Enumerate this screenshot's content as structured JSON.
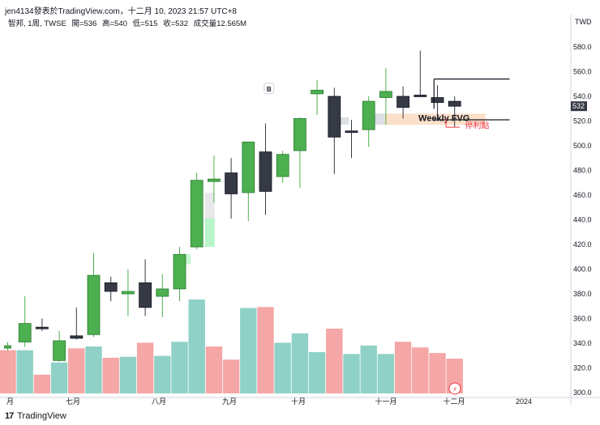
{
  "header": {
    "text": "jen4134發表於TradingView.com，十二月 10, 2023 21:57 UTC+8"
  },
  "symbol": {
    "name": "智邦, 1周, TWSE",
    "open": "開=536",
    "high": "高=540",
    "low": "低=515",
    "close": "收=532",
    "volume": "成交量12.565M"
  },
  "footer": {
    "logo": "17",
    "brand": "TradingView"
  },
  "chart_data": {
    "type": "candlestick",
    "currency": "TWD",
    "ylim": [
      300,
      580
    ],
    "y_ticks": [
      580,
      560,
      540,
      520,
      500,
      480,
      460,
      440,
      420,
      400,
      380,
      360,
      340,
      320,
      300
    ],
    "last_price": 532,
    "x_labels": [
      "月",
      "七月",
      "八月",
      "九月",
      "十月",
      "十一月",
      "十二月",
      "2024"
    ],
    "colors": {
      "up": "#4caf50",
      "down": "#363a45",
      "vol_up": "#8fd1c6",
      "vol_down": "#f5a6a6"
    },
    "candles": [
      {
        "o": 336,
        "h": 341,
        "l": 334,
        "c": 338,
        "vol": 0.46
      },
      {
        "o": 341,
        "h": 378,
        "l": 337,
        "c": 356,
        "vol": 0.46
      },
      {
        "o": 353,
        "h": 360,
        "l": 350,
        "c": 352,
        "vol": 0.2
      },
      {
        "o": 326,
        "h": 350,
        "l": 325,
        "c": 342,
        "vol": 0.33
      },
      {
        "o": 346,
        "h": 369,
        "l": 343,
        "c": 344,
        "vol": 0.48
      },
      {
        "o": 347,
        "h": 413,
        "l": 345,
        "c": 395,
        "vol": 0.5
      },
      {
        "o": 389,
        "h": 394,
        "l": 374,
        "c": 382,
        "vol": 0.38
      },
      {
        "o": 380,
        "h": 400,
        "l": 362,
        "c": 382,
        "vol": 0.39
      },
      {
        "o": 389,
        "h": 408,
        "l": 362,
        "c": 369,
        "vol": 0.54
      },
      {
        "o": 378,
        "h": 396,
        "l": 361,
        "c": 384,
        "vol": 0.4
      },
      {
        "o": 384,
        "h": 418,
        "l": 374,
        "c": 412,
        "vol": 0.55
      },
      {
        "o": 418,
        "h": 478,
        "l": 416,
        "c": 472,
        "vol": 1.0
      },
      {
        "o": 471,
        "h": 492,
        "l": 454,
        "c": 473,
        "vol": 0.5
      },
      {
        "o": 478,
        "h": 490,
        "l": 441,
        "c": 461,
        "vol": 0.36
      },
      {
        "o": 462,
        "h": 502,
        "l": 439,
        "c": 503,
        "vol": 0.91
      },
      {
        "o": 495,
        "h": 518,
        "l": 444,
        "c": 463,
        "vol": 0.92
      },
      {
        "o": 475,
        "h": 496,
        "l": 470,
        "c": 493,
        "vol": 0.54
      },
      {
        "o": 496,
        "h": 523,
        "l": 466,
        "c": 522,
        "vol": 0.64
      },
      {
        "o": 542,
        "h": 553,
        "l": 525,
        "c": 545,
        "vol": 0.44
      },
      {
        "o": 540,
        "h": 547,
        "l": 477,
        "c": 507,
        "vol": 0.69
      },
      {
        "o": 512,
        "h": 521,
        "l": 490,
        "c": 511,
        "vol": 0.42
      },
      {
        "o": 513,
        "h": 540,
        "l": 499,
        "c": 536,
        "vol": 0.51
      },
      {
        "o": 539,
        "h": 563,
        "l": 517,
        "c": 544,
        "vol": 0.42
      },
      {
        "o": 540,
        "h": 548,
        "l": 522,
        "c": 531,
        "vol": 0.55
      },
      {
        "o": 541,
        "h": 577,
        "l": 541,
        "c": 540,
        "vol": 0.49
      },
      {
        "o": 539,
        "h": 549,
        "l": 522,
        "c": 535,
        "vol": 0.43
      },
      {
        "o": 536,
        "h": 540,
        "l": 515,
        "c": 532,
        "vol": 0.37
      }
    ],
    "volume_colors": [
      "down",
      "up",
      "down",
      "up",
      "down",
      "up",
      "down",
      "up",
      "down",
      "up",
      "up",
      "up",
      "down",
      "down",
      "up",
      "down",
      "up",
      "up",
      "up",
      "down",
      "up",
      "up",
      "up",
      "down",
      "down",
      "down",
      "down"
    ],
    "annotations": [
      {
        "type": "marker",
        "text": "B",
        "x_index": 15.2,
        "y": 546
      },
      {
        "type": "zone",
        "text": "Weekly FVG",
        "x_from": 21.3,
        "x_to": 27.8,
        "y_from": 517,
        "y_to": 526
      },
      {
        "type": "label",
        "text": "停利點",
        "x_index": 26.6,
        "y": 516
      },
      {
        "type": "horizontal_line",
        "x_from": 24.8,
        "x_to": 29.2,
        "y": 554
      },
      {
        "type": "horizontal_line",
        "x_from": 24.8,
        "x_to": 29.2,
        "y": 521
      }
    ]
  }
}
